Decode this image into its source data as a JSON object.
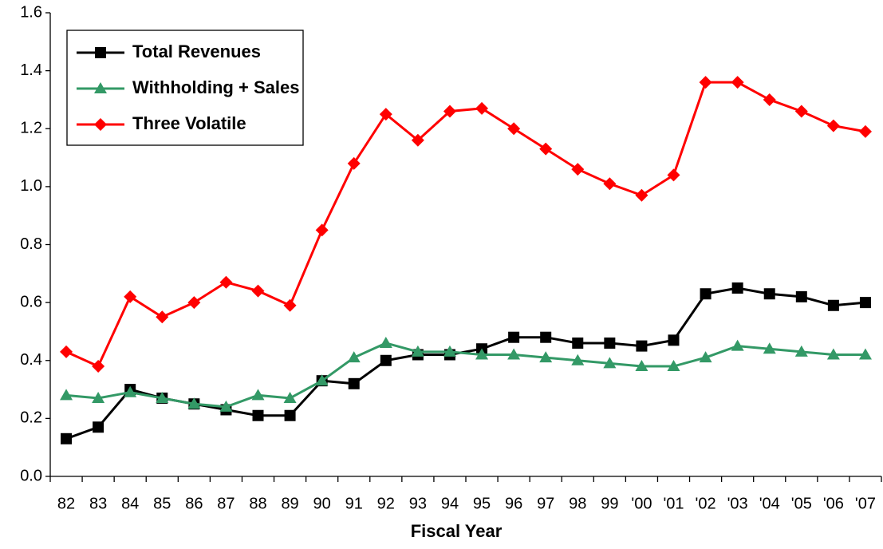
{
  "chart_data": {
    "type": "line",
    "x_label": "Fiscal Year",
    "categories": [
      "82",
      "83",
      "84",
      "85",
      "86",
      "87",
      "88",
      "89",
      "90",
      "91",
      "92",
      "93",
      "94",
      "95",
      "96",
      "97",
      "98",
      "99",
      "'00",
      "'01",
      "'02",
      "'03",
      "'04",
      "'05",
      "'06",
      "'07"
    ],
    "series": [
      {
        "name": "Total Revenues",
        "color": "#000000",
        "marker": "square",
        "values": [
          0.13,
          0.17,
          0.3,
          0.27,
          0.25,
          0.23,
          0.21,
          0.21,
          0.33,
          0.32,
          0.4,
          0.42,
          0.42,
          0.44,
          0.48,
          0.48,
          0.46,
          0.46,
          0.45,
          0.47,
          0.63,
          0.65,
          0.63,
          0.62,
          0.59,
          0.6
        ]
      },
      {
        "name": "Withholding + Sales",
        "color": "#339966",
        "marker": "triangle",
        "values": [
          0.28,
          0.27,
          0.29,
          0.27,
          0.25,
          0.24,
          0.28,
          0.27,
          0.33,
          0.41,
          0.46,
          0.43,
          0.43,
          0.42,
          0.42,
          0.41,
          0.4,
          0.39,
          0.38,
          0.38,
          0.41,
          0.45,
          0.44,
          0.43,
          0.42,
          0.42
        ]
      },
      {
        "name": "Three Volatile",
        "color": "#ff0000",
        "marker": "diamond",
        "values": [
          0.43,
          0.38,
          0.62,
          0.55,
          0.6,
          0.67,
          0.64,
          0.59,
          0.85,
          1.08,
          1.25,
          1.16,
          1.26,
          1.27,
          1.2,
          1.13,
          1.06,
          1.01,
          0.97,
          1.04,
          1.36,
          1.36,
          1.3,
          1.26,
          1.21,
          1.19
        ]
      }
    ],
    "ylim": [
      0,
      1.6
    ],
    "yticks": [
      {
        "value": 0,
        "label": "0.0"
      },
      0.2,
      0.4,
      0.6,
      0.8,
      {
        "value": 1,
        "label": "1.0"
      },
      1.2,
      1.4,
      1.6
    ],
    "legend": "upper left"
  }
}
